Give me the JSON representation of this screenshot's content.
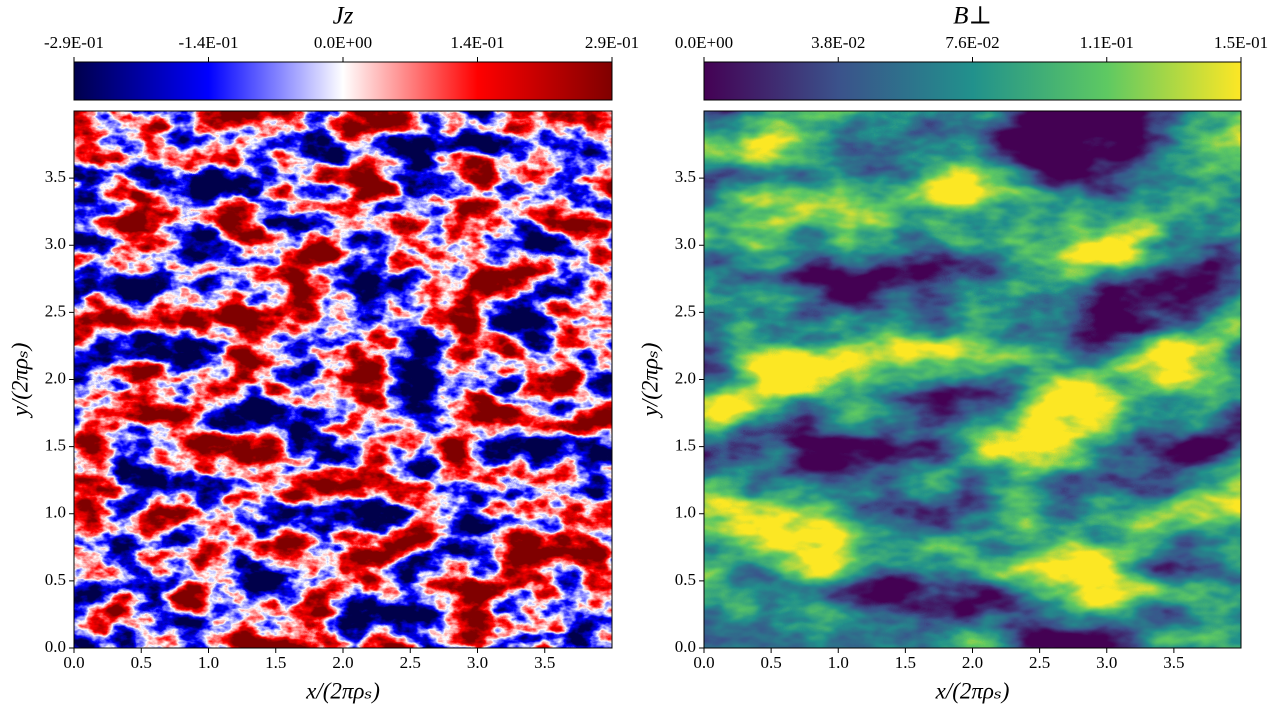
{
  "chart_data": [
    {
      "type": "heatmap",
      "title": "Jz",
      "xlabel": "x/(2πρₛ)",
      "ylabel": "y/(2πρₛ)",
      "xlim": [
        0,
        4
      ],
      "ylim": [
        0,
        4
      ],
      "xticks": [
        {
          "value": 0,
          "label": "0.0"
        },
        0.5,
        {
          "value": 1,
          "label": "1.0"
        },
        1.5,
        {
          "value": 2,
          "label": "2.0"
        },
        2.5,
        {
          "value": 3,
          "label": "3.0"
        },
        3.5
      ],
      "yticks": [
        {
          "value": 0,
          "label": "0.0"
        },
        0.5,
        {
          "value": 1,
          "label": "1.0"
        },
        1.5,
        {
          "value": 2,
          "label": "2.0"
        },
        2.5,
        {
          "value": 3,
          "label": "3.0"
        },
        3.5
      ],
      "clim": [
        -0.286,
        0.286
      ],
      "cticks": [
        {
          "value": -0.286,
          "label": "-2.9E-01"
        },
        {
          "value": -0.143,
          "label": "-1.4E-01"
        },
        {
          "value": 0,
          "label": "0.0E+00"
        },
        {
          "value": 0.143,
          "label": "1.4E-01"
        },
        {
          "value": 0.286,
          "label": "2.9E-01"
        }
      ],
      "colormap": [
        "#00004c",
        "#0000ff",
        "#ffffff",
        "#ff0000",
        "#800000"
      ]
    },
    {
      "type": "heatmap",
      "title": "B⊥",
      "xlabel": "x/(2πρₛ)",
      "ylabel": "y/(2πρₛ)",
      "xlim": [
        0,
        4
      ],
      "ylim": [
        0,
        4
      ],
      "xticks": [
        {
          "value": 0,
          "label": "0.0"
        },
        0.5,
        {
          "value": 1,
          "label": "1.0"
        },
        1.5,
        {
          "value": 2,
          "label": "2.0"
        },
        2.5,
        {
          "value": 3,
          "label": "3.0"
        },
        3.5
      ],
      "yticks": [
        {
          "value": 0,
          "label": "0.0"
        },
        0.5,
        {
          "value": 1,
          "label": "1.0"
        },
        1.5,
        {
          "value": 2,
          "label": "2.0"
        },
        2.5,
        {
          "value": 3,
          "label": "3.0"
        },
        3.5
      ],
      "clim": [
        0,
        0.152
      ],
      "cticks": [
        {
          "value": 0,
          "label": "0.0E+00"
        },
        {
          "value": 0.038,
          "label": "3.8E-02"
        },
        {
          "value": 0.076,
          "label": "7.6E-02"
        },
        {
          "value": 0.114,
          "label": "1.1E-01"
        },
        {
          "value": 0.152,
          "label": "1.5E-01"
        }
      ],
      "colormap": [
        "#440154",
        "#3b528b",
        "#21918c",
        "#5ec962",
        "#fde725"
      ]
    }
  ]
}
